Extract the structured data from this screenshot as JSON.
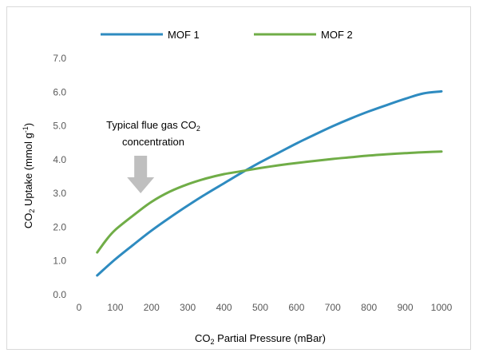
{
  "chart_data": {
    "type": "line",
    "xlabel": {
      "prefix": "CO",
      "sub": "2",
      "rest": " Partial Pressure (mBar)"
    },
    "ylabel": {
      "prefix": "CO",
      "sub": "2",
      "mid": " Uptake (mmol g",
      "sup": "-1",
      "end": ")"
    },
    "xlim": [
      0,
      1000
    ],
    "ylim": [
      0.0,
      7.0
    ],
    "xticks": [
      "0",
      "100",
      "200",
      "300",
      "400",
      "500",
      "600",
      "700",
      "800",
      "900",
      "1000"
    ],
    "yticks": [
      "0.0",
      "1.0",
      "2.0",
      "3.0",
      "4.0",
      "5.0",
      "6.0",
      "7.0"
    ],
    "grid": false,
    "legend_position": "top",
    "annotation": {
      "line1_prefix": "Typical flue gas CO",
      "line1_sub": "2",
      "line2": "concentration",
      "arrow_x": 170
    },
    "series": [
      {
        "name": "MOF 1",
        "color": "#2e8bc0",
        "x": [
          50,
          100,
          150,
          200,
          250,
          300,
          350,
          400,
          450,
          500,
          550,
          600,
          650,
          700,
          750,
          800,
          850,
          900,
          950,
          1000
        ],
        "y": [
          0.57,
          1.05,
          1.48,
          1.9,
          2.28,
          2.64,
          2.98,
          3.3,
          3.62,
          3.92,
          4.2,
          4.48,
          4.74,
          4.99,
          5.22,
          5.43,
          5.62,
          5.8,
          5.96,
          6.02
        ]
      },
      {
        "name": "MOF 2",
        "color": "#70ad47",
        "x": [
          50,
          75,
          100,
          150,
          200,
          250,
          300,
          350,
          400,
          450,
          500,
          550,
          600,
          650,
          700,
          750,
          800,
          850,
          900,
          950,
          1000
        ],
        "y": [
          1.25,
          1.62,
          1.92,
          2.35,
          2.75,
          3.05,
          3.27,
          3.44,
          3.57,
          3.66,
          3.75,
          3.83,
          3.9,
          3.96,
          4.02,
          4.07,
          4.12,
          4.16,
          4.19,
          4.22,
          4.24
        ]
      }
    ]
  }
}
